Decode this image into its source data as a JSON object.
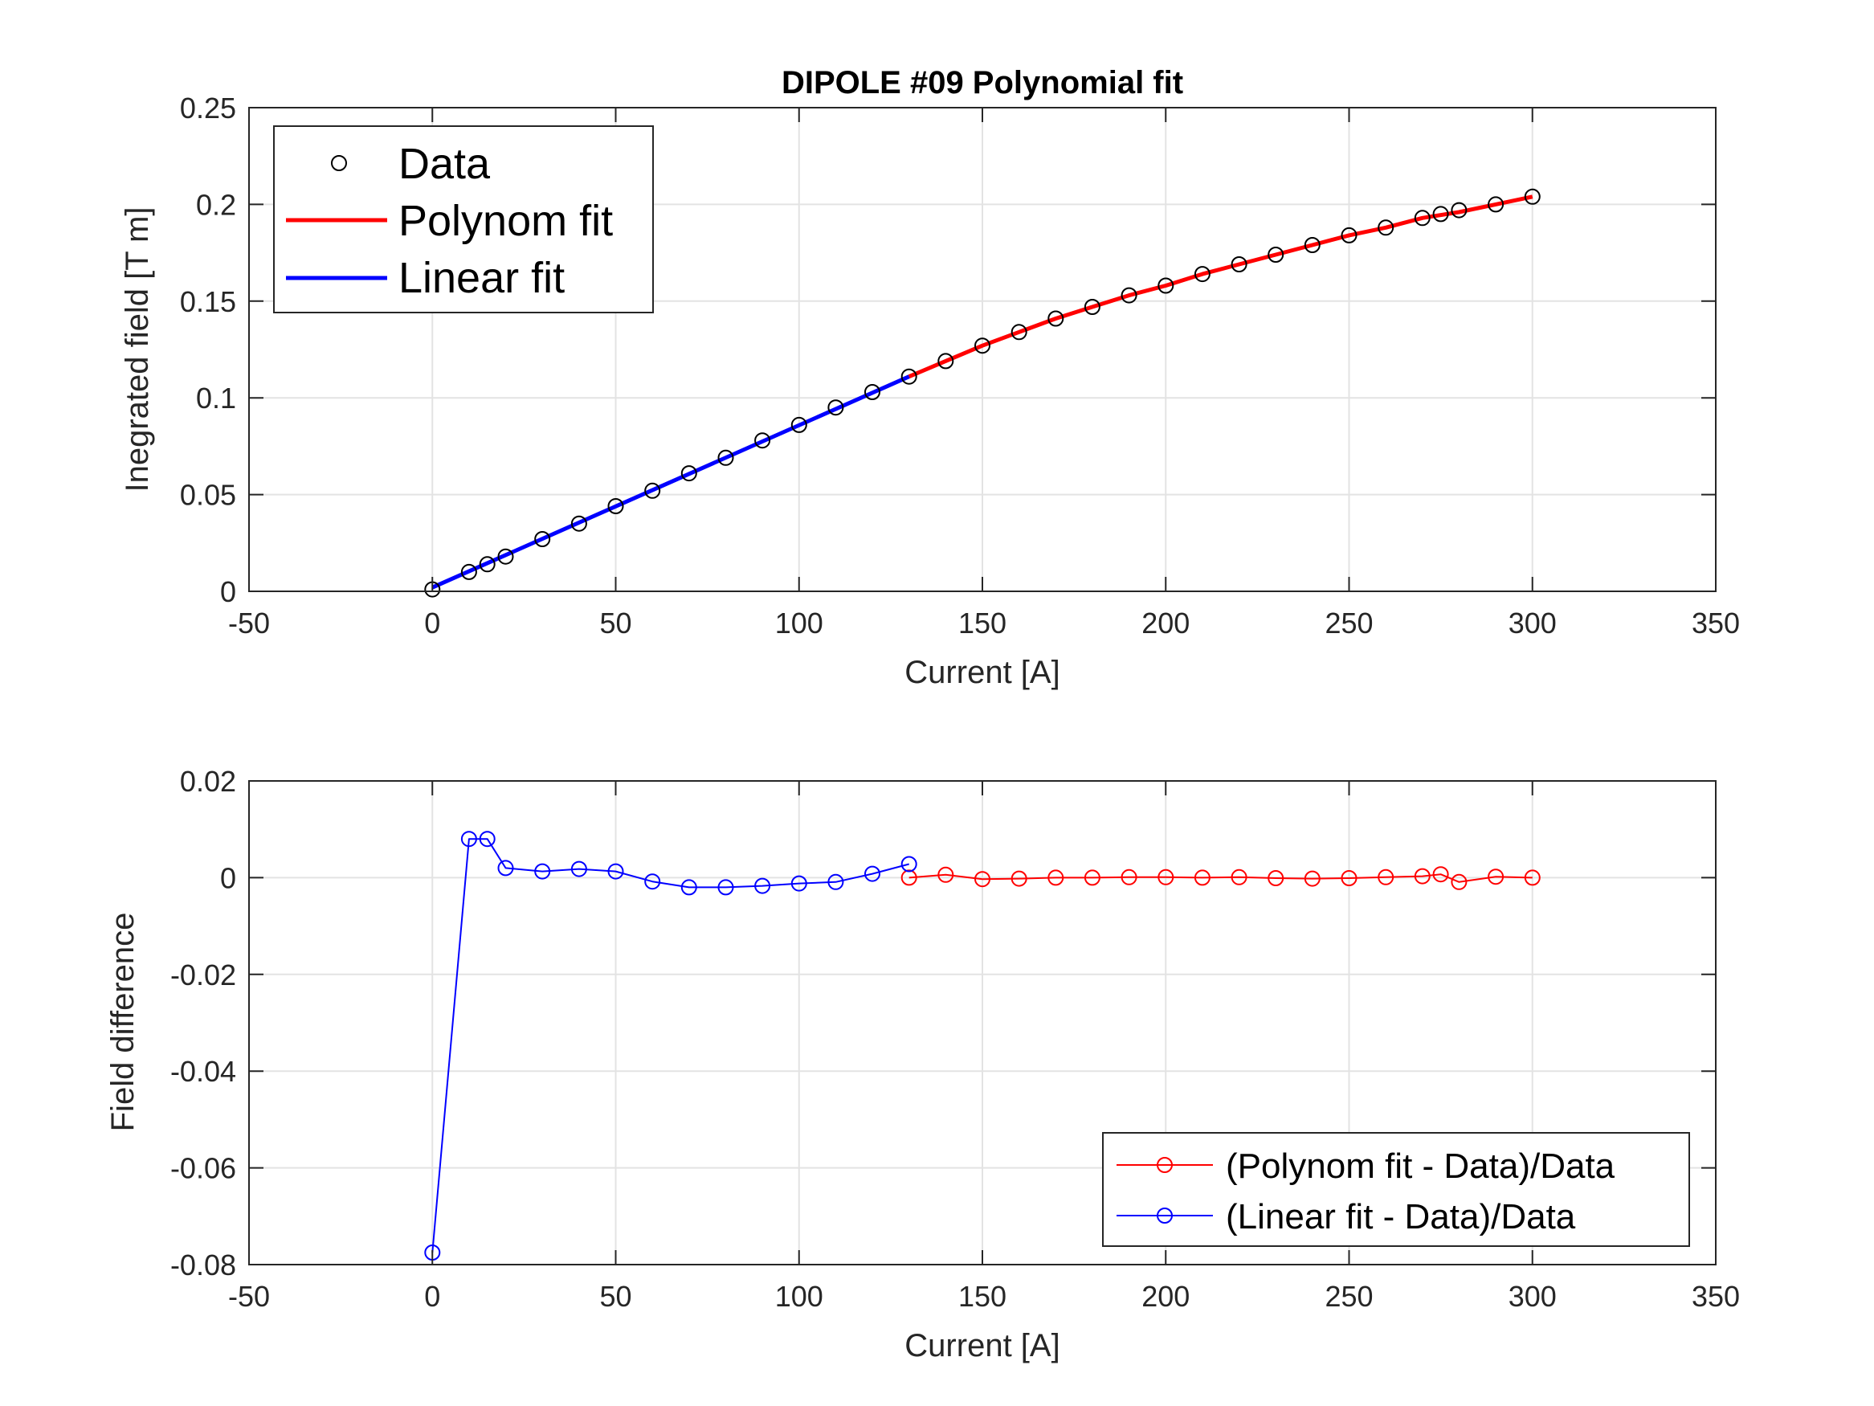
{
  "chart_data": [
    {
      "type": "line",
      "title": "DIPOLE #09 Polynomial fit",
      "xlabel": "Current [A]",
      "ylabel": "Inegrated field [T m]",
      "xlim": [
        -50,
        350
      ],
      "ylim": [
        0,
        0.25
      ],
      "xticks": [
        "-50",
        "0",
        "50",
        "100",
        "150",
        "200",
        "250",
        "300",
        "350"
      ],
      "yticks": [
        "0",
        "0.05",
        "0.1",
        "0.15",
        "0.2",
        "0.25"
      ],
      "grid": true,
      "legend": "top-left",
      "series": [
        {
          "name": "Data",
          "style": "markers",
          "color": "#000000",
          "x": [
            0,
            10,
            15,
            20,
            30,
            40,
            50,
            60,
            70,
            80,
            90,
            100,
            110,
            120,
            130,
            140,
            150,
            160,
            170,
            180,
            190,
            200,
            210,
            220,
            230,
            240,
            250,
            260,
            270,
            275,
            280,
            290,
            300
          ],
          "y": [
            0.001,
            0.01,
            0.014,
            0.018,
            0.027,
            0.035,
            0.044,
            0.052,
            0.061,
            0.069,
            0.078,
            0.086,
            0.095,
            0.103,
            0.111,
            0.119,
            0.127,
            0.134,
            0.141,
            0.147,
            0.153,
            0.158,
            0.164,
            0.169,
            0.174,
            0.179,
            0.184,
            0.188,
            0.193,
            0.195,
            0.197,
            0.2,
            0.204
          ]
        },
        {
          "name": "Polynom fit",
          "style": "line",
          "color": "#ff0000",
          "x": [
            130,
            140,
            150,
            160,
            170,
            180,
            190,
            200,
            210,
            220,
            230,
            240,
            250,
            260,
            270,
            280,
            290,
            300
          ],
          "y": [
            0.111,
            0.119,
            0.127,
            0.134,
            0.141,
            0.147,
            0.153,
            0.158,
            0.164,
            0.169,
            0.174,
            0.179,
            0.184,
            0.188,
            0.193,
            0.196,
            0.2,
            0.204
          ]
        },
        {
          "name": "Linear fit",
          "style": "line",
          "color": "#0000ff",
          "x": [
            0,
            130
          ],
          "y": [
            0.002,
            0.111
          ]
        }
      ]
    },
    {
      "type": "line",
      "title": "",
      "xlabel": "Current [A]",
      "ylabel": "Field difference",
      "xlim": [
        -50,
        350
      ],
      "ylim": [
        -0.08,
        0.02
      ],
      "xticks": [
        "-50",
        "0",
        "50",
        "100",
        "150",
        "200",
        "250",
        "300",
        "350"
      ],
      "yticks": [
        "-0.08",
        "-0.06",
        "-0.04",
        "-0.02",
        "0",
        "0.02"
      ],
      "grid": true,
      "legend": "bottom-right",
      "series": [
        {
          "name": "(Polynom fit - Data)/Data",
          "style": "line-markers",
          "color": "#ff0000",
          "x": [
            130,
            140,
            150,
            160,
            170,
            180,
            190,
            200,
            210,
            220,
            230,
            240,
            250,
            260,
            270,
            275,
            280,
            290,
            300
          ],
          "y": [
            0.0,
            0.0006,
            -0.0003,
            -0.0002,
            0.0,
            0.0,
            0.0001,
            0.0001,
            0.0,
            0.0001,
            -0.0001,
            -0.0002,
            -0.0001,
            0.0001,
            0.0003,
            0.0007,
            -0.0009,
            0.0002,
            0.0
          ]
        },
        {
          "name": "(Linear fit - Data)/Data",
          "style": "line-markers",
          "color": "#0000ff",
          "x": [
            0,
            10,
            15,
            20,
            30,
            40,
            50,
            60,
            70,
            80,
            90,
            100,
            110,
            120,
            130
          ],
          "y": [
            -0.0775,
            0.008,
            0.008,
            0.002,
            0.0013,
            0.0018,
            0.0013,
            -0.0008,
            -0.002,
            -0.002,
            -0.0017,
            -0.0012,
            -0.0009,
            0.0008,
            0.0028
          ]
        }
      ]
    }
  ]
}
